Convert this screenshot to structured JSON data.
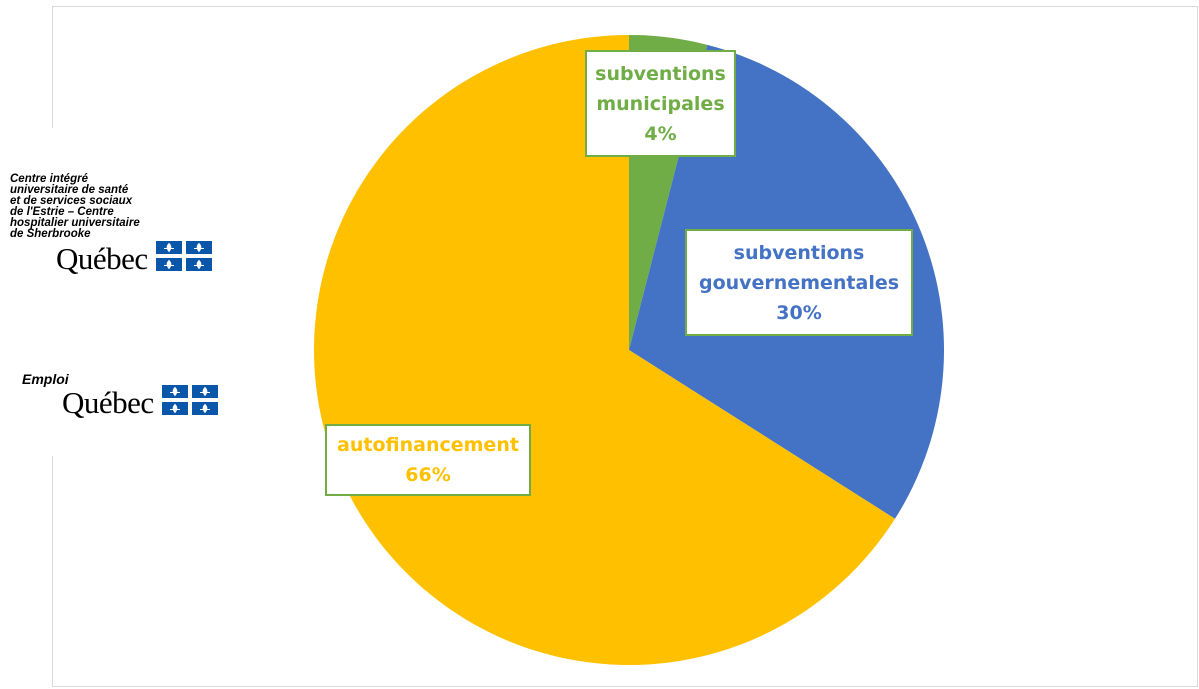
{
  "logos": {
    "ciusss": {
      "text": "Centre intégré\nuniversitaire de santé\net de services sociaux\nde l'Estrie – Centre\nhospitalier universitaire\nde Sherbrooke",
      "wordmark": "Québec"
    },
    "emploi": {
      "text": "Emploi",
      "wordmark": "Québec"
    },
    "flag_colors": {
      "blue": "#0a56a8",
      "white": "#ffffff"
    }
  },
  "chart_data": {
    "type": "pie",
    "slices": [
      {
        "name": "subventions municipales",
        "label_lines": [
          "subventions",
          "municipales"
        ],
        "value": 4,
        "value_label": "4%",
        "color": "#70ad47"
      },
      {
        "name": "subventions gouvernementales",
        "label_lines": [
          "subventions",
          "gouvernementales"
        ],
        "value": 30,
        "value_label": "30%",
        "color": "#4472c4"
      },
      {
        "name": "autofinancement",
        "label_lines": [
          "autofinancement"
        ],
        "value": 66,
        "value_label": "66%",
        "color": "#ffc000"
      }
    ],
    "start_angle_deg": 0,
    "direction": "clockwise",
    "legend": "none",
    "label_border_color": "#70ad47"
  }
}
